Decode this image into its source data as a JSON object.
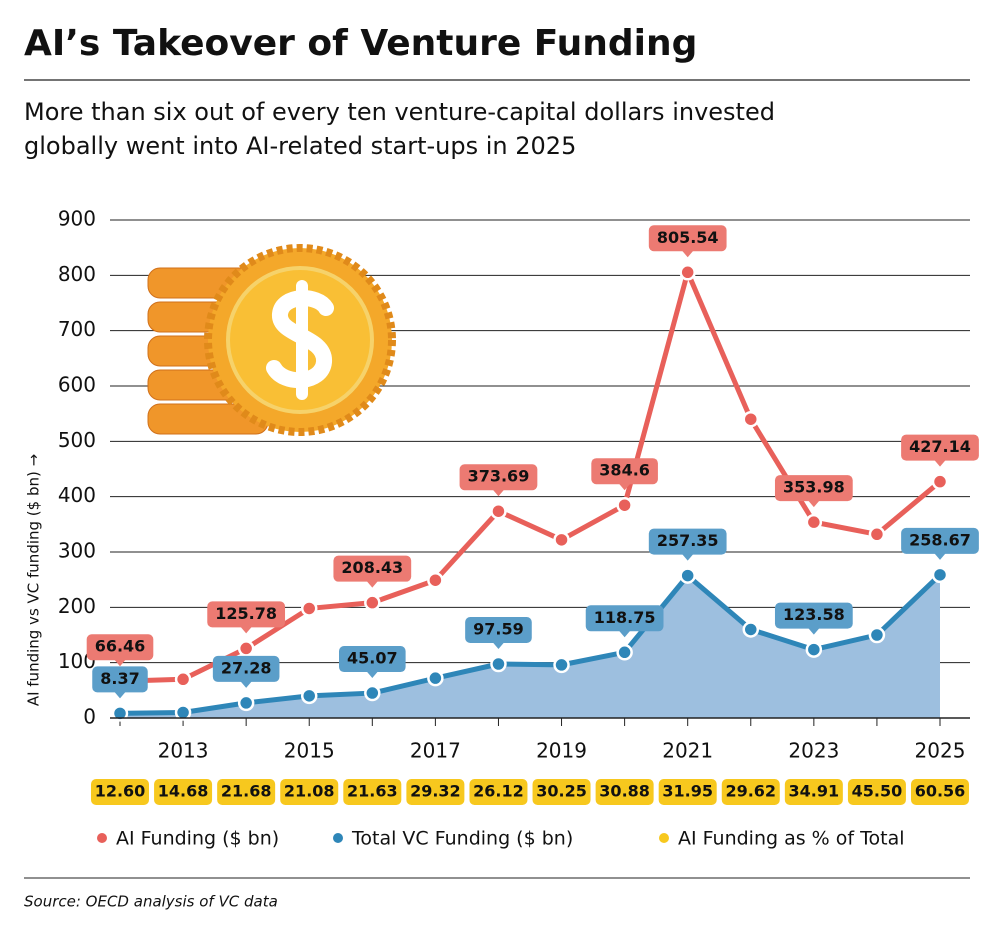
{
  "chart_data": {
    "type": "line",
    "title": "AI’s Takeover of Venture Funding",
    "subtitle": [
      "More than six out of every ten venture-capital dollars invested",
      "globally went into AI-related start-ups in 2025"
    ],
    "y_label": "AI funding vs VC funding ($ bn) →",
    "source": "Source: OECD analysis of VC data",
    "categories": [
      null,
      "2013",
      null,
      "2015",
      null,
      "2017",
      null,
      "2019",
      null,
      "2021",
      null,
      "2023",
      null,
      "2025"
    ],
    "ylim": [
      0,
      900
    ],
    "yticks": [
      0,
      100,
      200,
      300,
      400,
      500,
      600,
      700,
      800,
      900
    ],
    "grid": true,
    "series": [
      {
        "name": "AI Funding ($ bn)",
        "color": "#e8605a",
        "values": [
          66.46,
          70,
          125.78,
          198,
          208.43,
          249,
          373.69,
          322,
          384.6,
          805.54,
          540,
          353.98,
          332,
          427.14
        ],
        "value_labels": [
          "66.46",
          null,
          "125.78",
          null,
          "208.43",
          null,
          "373.69",
          null,
          "384.6",
          "805.54",
          null,
          "353.98",
          null,
          "427.14"
        ]
      },
      {
        "name": "Total VC Funding ($ bn)",
        "color": "#2e86b8",
        "fill": "#9dbfdf",
        "values": [
          8.37,
          10,
          27.28,
          40,
          45.07,
          72,
          97.59,
          96,
          118.75,
          257.35,
          160,
          123.58,
          150,
          258.67
        ],
        "value_labels": [
          "8.37",
          null,
          "27.28",
          null,
          "45.07",
          null,
          "97.59",
          null,
          "118.75",
          "257.35",
          null,
          "123.58",
          null,
          "258.67"
        ]
      },
      {
        "name": "AI Funding as % of Total",
        "color": "#f7c81e",
        "axis": "none",
        "values": [
          12.6,
          14.68,
          21.68,
          21.08,
          21.63,
          29.32,
          26.12,
          30.25,
          30.88,
          31.95,
          29.62,
          34.91,
          45.5,
          60.56
        ],
        "value_labels": [
          "12.60",
          "14.68",
          "21.68",
          "21.08",
          "21.63",
          "29.32",
          "26.12",
          "30.25",
          "30.88",
          "31.95",
          "29.62",
          "34.91",
          "45.50",
          "60.56"
        ]
      }
    ]
  }
}
